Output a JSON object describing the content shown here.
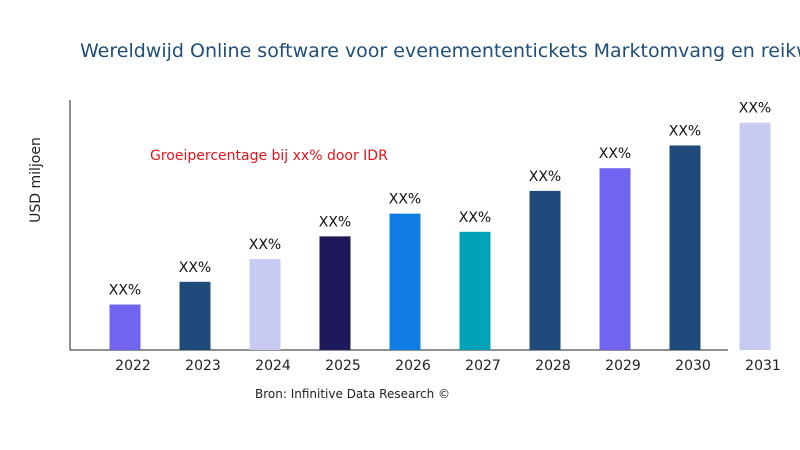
{
  "chart_data": {
    "type": "bar",
    "title": "Wereldwijd Online software voor evenemententickets Marktomvang en reikwijdte",
    "ylabel": "USD miljoen",
    "xlabel": "",
    "categories": [
      "2022",
      "2023",
      "2024",
      "2025",
      "2026",
      "2027",
      "2028",
      "2029",
      "2030",
      "2031"
    ],
    "values": [
      2,
      3,
      4,
      5,
      6,
      5.2,
      7,
      8,
      9,
      10
    ],
    "data_labels": [
      "XX%",
      "XX%",
      "XX%",
      "XX%",
      "XX%",
      "XX%",
      "XX%",
      "XX%",
      "XX%",
      "XX%"
    ],
    "colors": [
      "#7064f0",
      "#1f4a7a",
      "#c8cbf1",
      "#1e1a5a",
      "#0f7de3",
      "#00a3b8",
      "#1f4a7a",
      "#7064f0",
      "#1f4a7a",
      "#c8cbf1"
    ],
    "ylim": [
      0,
      11
    ],
    "grid": false,
    "annotation": "Groeipercentage bij xx% door IDR",
    "source": "Bron: Infinitive Data Research ©"
  }
}
